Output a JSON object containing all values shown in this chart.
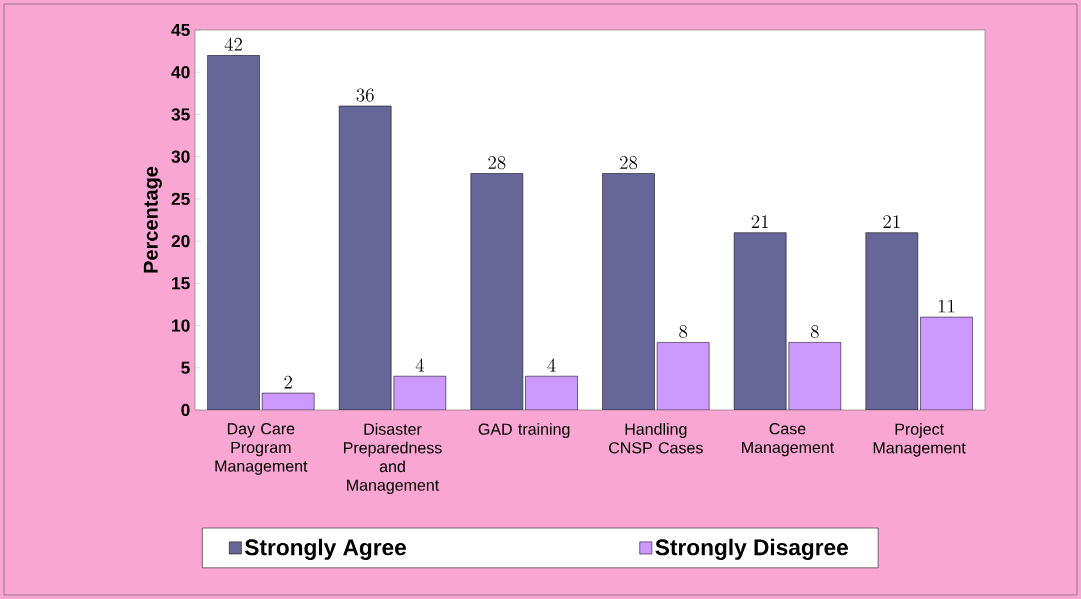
{
  "chart_data": {
    "type": "bar",
    "ylabel": "Percentage",
    "categories": [
      "Day Care Program Management",
      "Disaster Preparedness and Management",
      "GAD training",
      "Handling CNSP Cases",
      "Case Management",
      "Project Management"
    ],
    "series": [
      {
        "name": "Strongly Agree",
        "color": "#666699",
        "values": [
          42,
          36,
          28,
          28,
          21,
          21
        ]
      },
      {
        "name": "Strongly Disagree",
        "color": "#cc99ff",
        "values": [
          2,
          4,
          4,
          8,
          8,
          11
        ]
      }
    ],
    "ylim": [
      0,
      45
    ],
    "yticks": [
      0,
      5,
      10,
      15,
      20,
      25,
      30,
      35,
      40,
      45
    ],
    "data_labels": true,
    "legend": "bottom"
  }
}
